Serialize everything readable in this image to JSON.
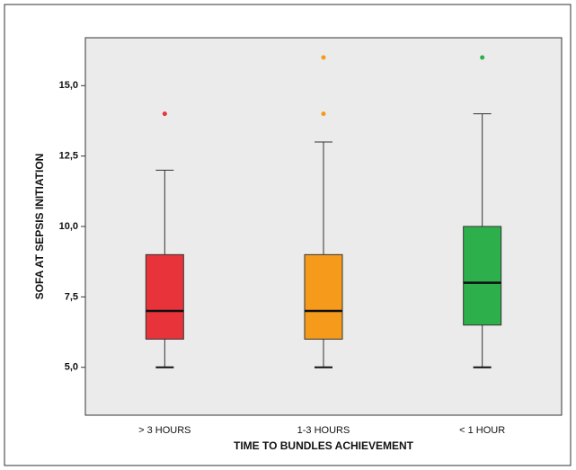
{
  "chart_data": {
    "type": "box",
    "x_label": "TIME TO BUNDLES ACHIEVEMENT",
    "y_label": "SOFA AT SEPSIS INITIATION",
    "categories": [
      "> 3 HOURS",
      "1-3 HOURS",
      "< 1 HOUR"
    ],
    "boxes": [
      {
        "whislo": 5,
        "q1": 6,
        "med": 7,
        "q3": 9,
        "whishi": 12,
        "fliers": [
          14
        ],
        "color": "#e8333a"
      },
      {
        "whislo": 5,
        "q1": 6,
        "med": 7,
        "q3": 9,
        "whishi": 13,
        "fliers": [
          14,
          16
        ],
        "color": "#f59a1b"
      },
      {
        "whislo": 5,
        "q1": 6.5,
        "med": 8,
        "q3": 10,
        "whishi": 14,
        "fliers": [
          16
        ],
        "color": "#2db04b"
      }
    ],
    "ylim": [
      3.3,
      16.7
    ],
    "yticks": [
      {
        "value": 5,
        "label": "5,0"
      },
      {
        "value": 7.5,
        "label": "7,5"
      },
      {
        "value": 10,
        "label": "10,0"
      },
      {
        "value": 12.5,
        "label": "12,5"
      },
      {
        "value": 15,
        "label": "15,0"
      }
    ]
  }
}
